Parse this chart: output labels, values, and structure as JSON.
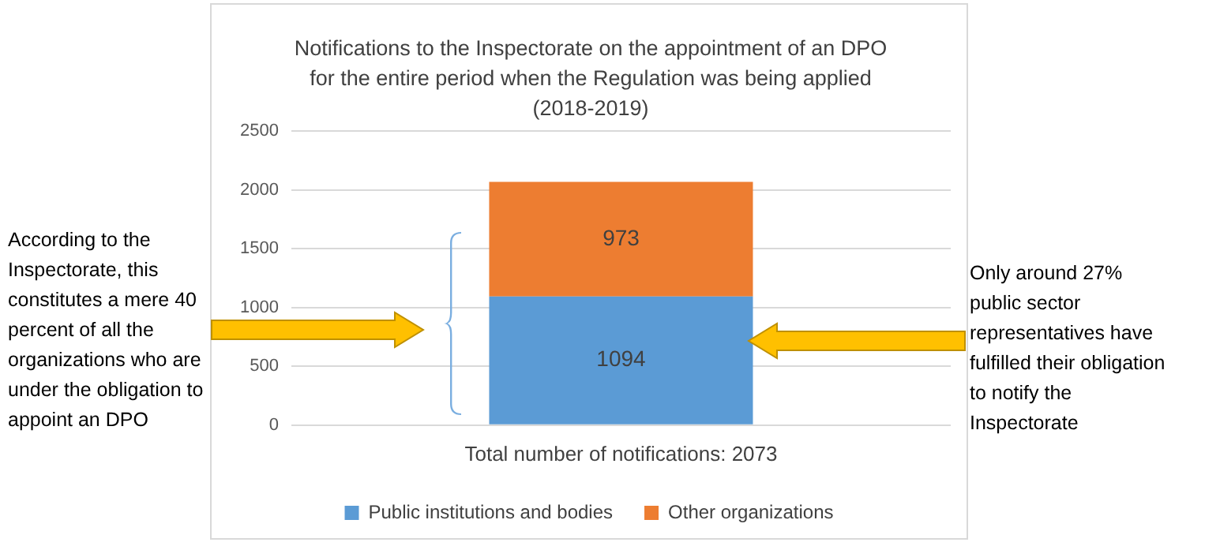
{
  "chart_data": {
    "type": "bar",
    "title": "Notifications to the Inspectorate on the appointment of an DPO for the entire period when the Regulation was being applied (2018-2019)",
    "categories": [
      "Total number of notifications: 2073"
    ],
    "stacked": true,
    "data_labels": true,
    "series": [
      {
        "name": "Public institutions and bodies",
        "color": "#5b9bd5",
        "values": [
          1094
        ]
      },
      {
        "name": "Other organizations",
        "color": "#ed7d31",
        "values": [
          973
        ]
      }
    ],
    "ylim": [
      0,
      2500
    ],
    "yticks": [
      0,
      500,
      1000,
      1500,
      2000,
      2500
    ],
    "grid": "y",
    "legend": "bottom",
    "annotations": [
      "According to the Inspectorate, this constitutes a mere 40 percent of all the organizations who are under the obligation to appoint an DPO",
      "Only around 27% public sector representatives have fulfilled their obligation to notify the Inspectorate"
    ]
  }
}
